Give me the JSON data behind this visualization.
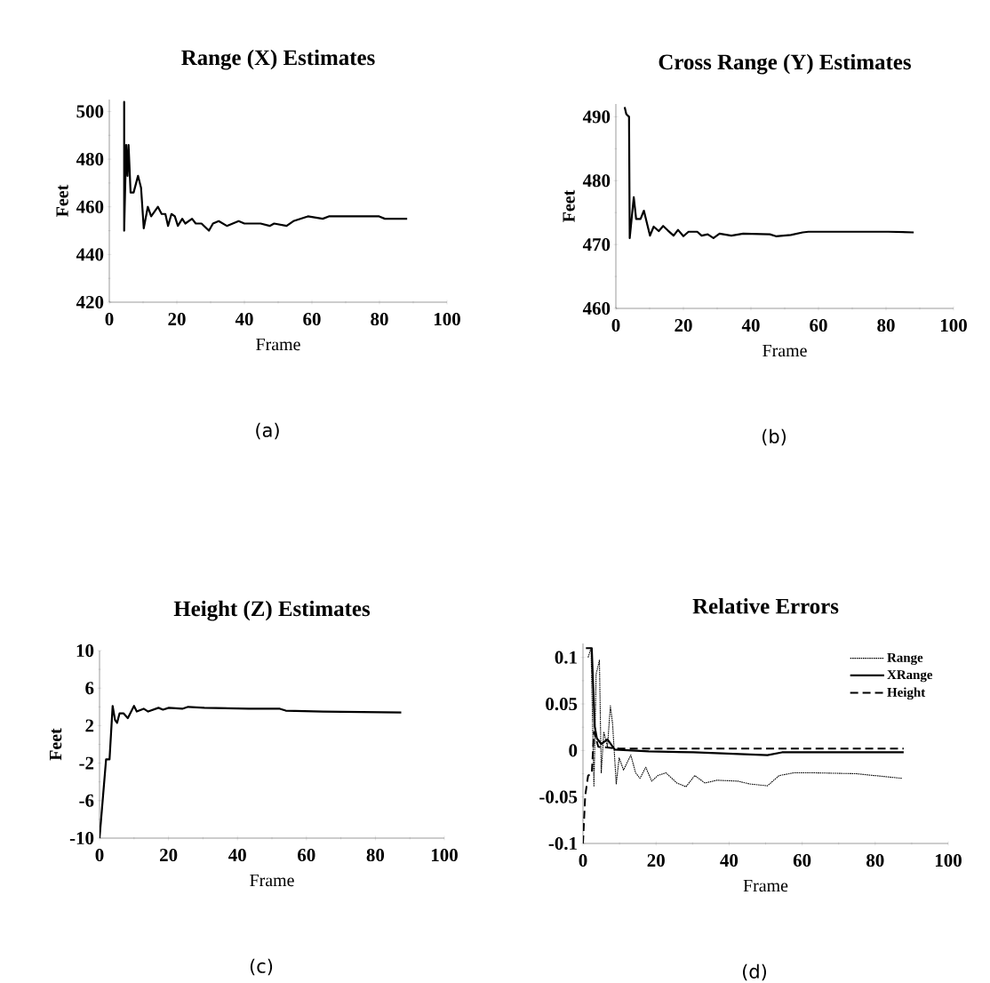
{
  "chart_data": [
    {
      "type": "line",
      "title": "Range (X) Estimates",
      "xlabel": "Frame",
      "ylabel": "Feet",
      "annotations": [
        "(a)"
      ],
      "xlim": [
        0,
        100
      ],
      "xticks": [
        0,
        20,
        40,
        60,
        80,
        100
      ],
      "ylim": [
        420,
        505
      ],
      "yticks": [
        420,
        440,
        460,
        480,
        500
      ],
      "grid": false,
      "series": [
        {
          "color": "#000000",
          "x": [
            4.4,
            4.4,
            4.4,
            5,
            5.4,
            5.7,
            6.3,
            7.2,
            8.5,
            9.4,
            10.2,
            11.4,
            12.4,
            14.4,
            15.5,
            16.6,
            17.4,
            18.4,
            19.4,
            20.3,
            21.6,
            22.5,
            24.5,
            25.6,
            27.3,
            29.5,
            30.7,
            32.4,
            34.8,
            38.3,
            40,
            44.8,
            47.5,
            48.8,
            52.5,
            54.5,
            58.8,
            63.2,
            65,
            79.9,
            81.6,
            88.2
          ],
          "values": [
            450,
            504,
            450,
            486,
            473,
            486,
            466,
            466,
            473,
            468,
            451,
            460,
            456,
            460,
            457,
            457,
            452,
            457,
            456,
            452,
            455,
            453,
            455,
            453,
            453,
            450,
            453,
            454,
            452,
            454,
            453,
            453,
            452,
            453,
            452,
            454,
            456,
            455,
            456,
            456,
            455,
            455
          ]
        }
      ]
    },
    {
      "type": "line",
      "title": "Cross Range (Y) Estimates",
      "xlabel": "Frame",
      "ylabel": "Feet",
      "annotations": [
        "(b)"
      ],
      "xlim": [
        0,
        100
      ],
      "xticks": [
        0,
        20,
        40,
        60,
        80,
        100
      ],
      "ylim": [
        460,
        492
      ],
      "yticks": [
        460,
        470,
        480,
        490
      ],
      "grid": false,
      "series": [
        {
          "color": "#000000",
          "x": [
            2.6,
            3.1,
            3.9,
            4.1,
            5.3,
            6,
            7.3,
            8.3,
            10.1,
            11.2,
            12.7,
            14,
            15.4,
            17.1,
            18.4,
            20,
            21.5,
            24.1,
            25.4,
            27.2,
            28.9,
            30.7,
            34.2,
            37.7,
            45.6,
            47.4,
            51.8,
            55.3,
            57,
            80.7,
            88.2
          ],
          "values": [
            491.5,
            490.4,
            490,
            471,
            477.4,
            474,
            474,
            475.3,
            471.4,
            472.8,
            472.1,
            472.9,
            472.2,
            471.4,
            472.3,
            471.3,
            472,
            472,
            471.4,
            471.6,
            471,
            471.7,
            471.4,
            471.7,
            471.6,
            471.3,
            471.5,
            471.9,
            472,
            472,
            471.9
          ]
        }
      ]
    },
    {
      "type": "line",
      "title": "Height (Z) Estimates",
      "xlabel": "Frame",
      "ylabel": "Feet",
      "annotations": [
        "(c)"
      ],
      "xlim": [
        0,
        100
      ],
      "xticks": [
        0,
        20,
        40,
        60,
        80,
        100
      ],
      "ylim": [
        -10,
        10
      ],
      "yticks": [
        -10,
        -6,
        -2,
        2,
        6,
        10
      ],
      "grid": false,
      "series": [
        {
          "color": "#000000",
          "x": [
            0,
            1.9,
            2.9,
            3.8,
            4.5,
            5.1,
            5.8,
            7,
            8.2,
            10,
            10.8,
            12.8,
            14.1,
            17.1,
            18.4,
            20.1,
            24,
            25.7,
            30.4,
            43.3,
            52.3,
            54,
            64.8,
            87.5
          ],
          "values": [
            -10,
            -1.6,
            -1.6,
            4.1,
            2.6,
            2.3,
            3.3,
            3.3,
            2.8,
            4.1,
            3.5,
            3.8,
            3.5,
            3.9,
            3.7,
            3.9,
            3.8,
            4,
            3.9,
            3.8,
            3.8,
            3.6,
            3.5,
            3.4
          ]
        }
      ]
    },
    {
      "type": "line",
      "title": "Relative Errors",
      "xlabel": "Frame",
      "annotations": [
        "(d)"
      ],
      "xlim": [
        0,
        100
      ],
      "xticks": [
        0,
        20,
        40,
        60,
        80,
        100
      ],
      "ylim": [
        -0.1,
        0.115
      ],
      "yticks": [
        -0.1,
        -0.05,
        0,
        0.05,
        0.1
      ],
      "grid": false,
      "legend": "top right",
      "series": [
        {
          "name": "Range",
          "color": "#000000",
          "line_style": "dotted",
          "x": [
            1.4,
            2.2,
            3,
            3.6,
            4.5,
            5,
            5.7,
            6.7,
            7.5,
            8.1,
            9.1,
            9.9,
            11.1,
            13.1,
            14.4,
            15.6,
            17.2,
            18.8,
            20.5,
            22.7,
            25.7,
            28.2,
            30.6,
            33.4,
            36.7,
            42.4,
            45.6,
            50.5,
            53.7,
            57.8,
            62.7,
            74.8,
            87.4
          ],
          "values": [
            0.1,
            0.11,
            -0.039,
            0.082,
            0.097,
            -0.024,
            0.02,
            0.004,
            0.048,
            0.029,
            -0.036,
            -0.008,
            -0.021,
            -0.005,
            -0.024,
            -0.03,
            -0.018,
            -0.033,
            -0.027,
            -0.024,
            -0.035,
            -0.039,
            -0.027,
            -0.035,
            -0.032,
            -0.033,
            -0.036,
            -0.038,
            -0.027,
            -0.024,
            -0.024,
            -0.025,
            -0.03
          ]
        },
        {
          "name": "XRange",
          "color": "#000000",
          "line_style": "solid",
          "x": [
            0.8,
            2.4,
            3.2,
            3.8,
            5,
            6.7,
            8.7,
            18,
            30.2,
            50.5,
            54.5,
            87.8
          ],
          "values": [
            0.11,
            0.11,
            0.026,
            0.013,
            0.007,
            0.012,
            0.001,
            -0.001,
            -0.002,
            -0.005,
            -0.002,
            -0.002
          ]
        },
        {
          "name": "Height",
          "color": "#000000",
          "line_style": "dashed",
          "x": [
            0,
            0.6,
            1.4,
            2.4,
            3,
            4.2,
            9.9,
            87.8
          ],
          "values": [
            -0.1,
            -0.049,
            -0.027,
            -0.025,
            0.02,
            0.004,
            0.002,
            0.002
          ]
        }
      ]
    }
  ]
}
